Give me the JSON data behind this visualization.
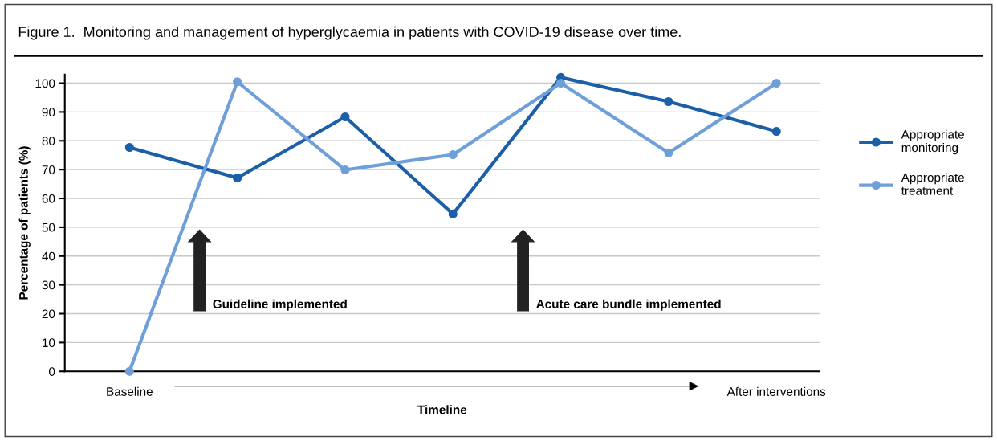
{
  "chart_data": {
    "type": "line",
    "title": "Figure 1.  Monitoring and management of hyperglycaemia in patients with COVID-19 disease over time.",
    "xlabel": "Timeline",
    "ylabel": "Percentage of patients (%)",
    "categories": [
      "Baseline",
      null,
      null,
      null,
      null,
      null,
      "After interventions"
    ],
    "series": [
      {
        "name": "Appropriate monitoring",
        "color": "#1a5fa8",
        "values": [
          77.7,
          67.1,
          88.3,
          54.6,
          102,
          93.6,
          83.3
        ]
      },
      {
        "name": "Appropriate treatment",
        "color": "#6f9fd8",
        "values": [
          0,
          100.5,
          69.9,
          75.2,
          100,
          75.8,
          100
        ]
      }
    ],
    "ylim": [
      0,
      103
    ],
    "yticks": [
      0,
      10,
      20,
      30,
      40,
      50,
      60,
      70,
      80,
      90,
      100
    ],
    "grid": "y",
    "legend": "right",
    "marker": "circle",
    "line_style": "solid",
    "annotations": [
      "Guideline implemented",
      "Acute care bundle implemented"
    ]
  }
}
